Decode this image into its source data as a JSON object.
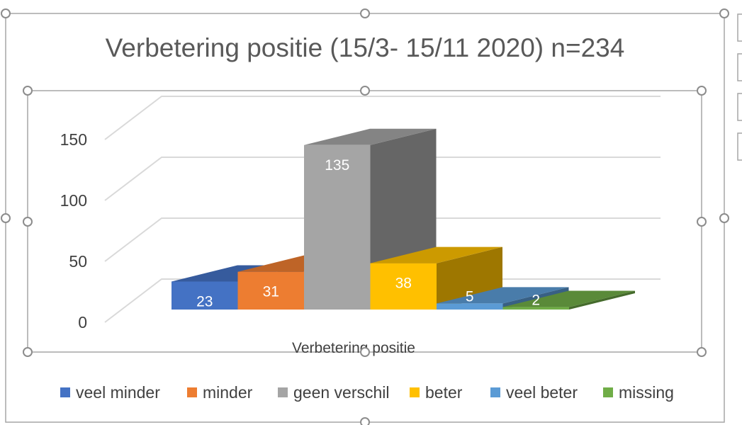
{
  "chart_data": {
    "type": "bar",
    "title": "Verbetering positie (15/3- 15/11 2020) n=234",
    "xlabel": "Verbetering positie",
    "ylabel": "",
    "ylim": [
      0,
      150
    ],
    "yticks": [
      0,
      50,
      100,
      150
    ],
    "grid": true,
    "legend_position": "bottom",
    "categories": [
      "Verbetering positie"
    ],
    "series": [
      {
        "name": "veel minder",
        "values": [
          23
        ],
        "color": "#4472C4"
      },
      {
        "name": "minder",
        "values": [
          31
        ],
        "color": "#ED7D31"
      },
      {
        "name": "geen verschil",
        "values": [
          135
        ],
        "color": "#A5A5A5"
      },
      {
        "name": "beter",
        "values": [
          38
        ],
        "color": "#FFC000"
      },
      {
        "name": "veel beter",
        "values": [
          5
        ],
        "color": "#5B9BD5"
      },
      {
        "name": "missing",
        "values": [
          2
        ],
        "color": "#70AD47"
      }
    ]
  }
}
